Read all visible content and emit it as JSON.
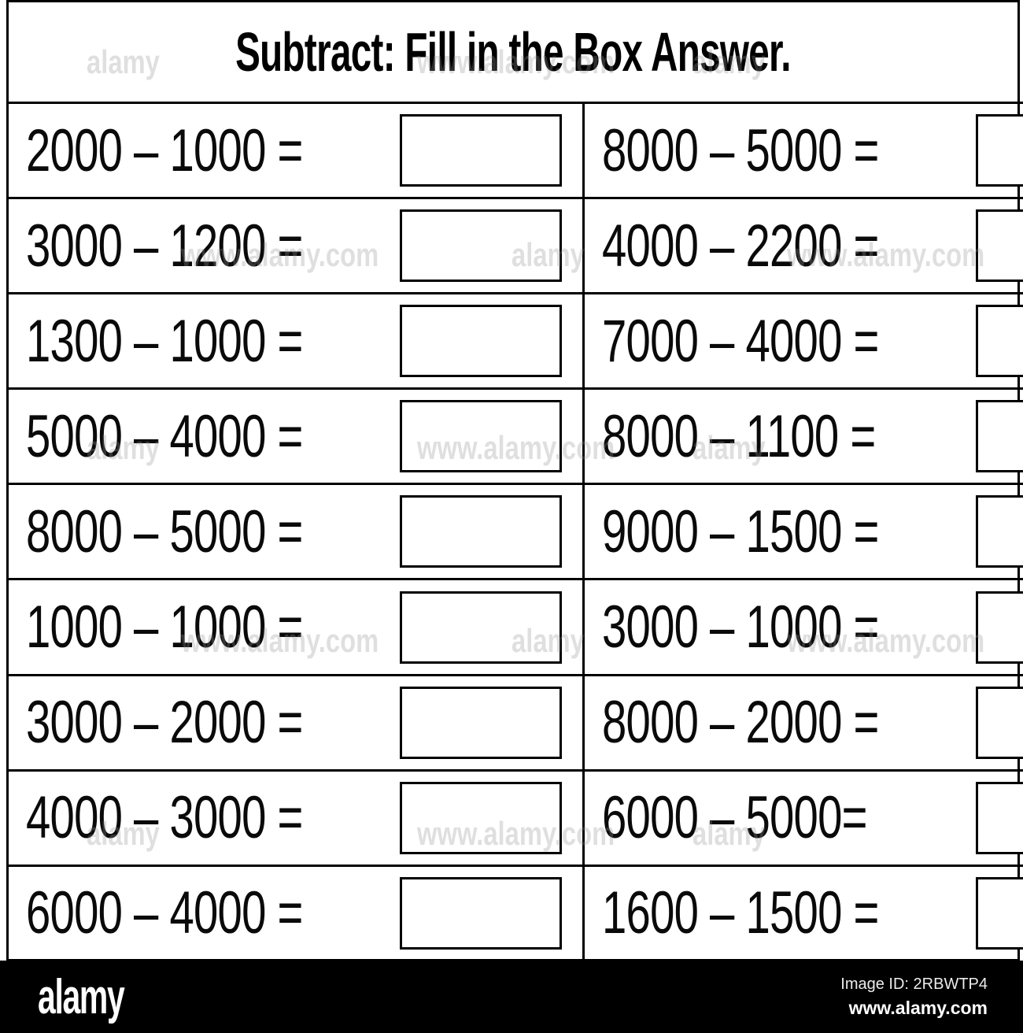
{
  "title": "Subtract: Fill in the Box Answer.",
  "rows": [
    {
      "left": "2000 – 1000 =",
      "right": "8000 – 5000 ="
    },
    {
      "left": "3000 – 1200 =",
      "right": "4000 – 2200 ="
    },
    {
      "left": "1300 – 1000 =",
      "right": "7000 – 4000 ="
    },
    {
      "left": "5000 – 4000 =",
      "right": "8000 – 1100 ="
    },
    {
      "left": "8000 – 5000 =",
      "right": "9000 – 1500 ="
    },
    {
      "left": "1000 – 1000 =",
      "right": "3000 – 1000 ="
    },
    {
      "left": "3000 – 2000 =",
      "right": "8000 – 2000 ="
    },
    {
      "left": "4000 – 3000 =",
      "right": "6000 – 5000="
    },
    {
      "left": "6000 – 4000 =",
      "right": "1600 – 1500 ="
    }
  ],
  "watermark": {
    "brand": "alamy",
    "url": "www.alamy.com"
  },
  "footer": {
    "logo": "alamy",
    "image_id": "Image ID: 2RBWTP4",
    "url": "www.alamy.com"
  },
  "colors": {
    "ink": "#000000",
    "paper": "#ffffff",
    "footer_bg": "#000000",
    "footer_text": "#ffffff",
    "watermark": "#969696"
  }
}
